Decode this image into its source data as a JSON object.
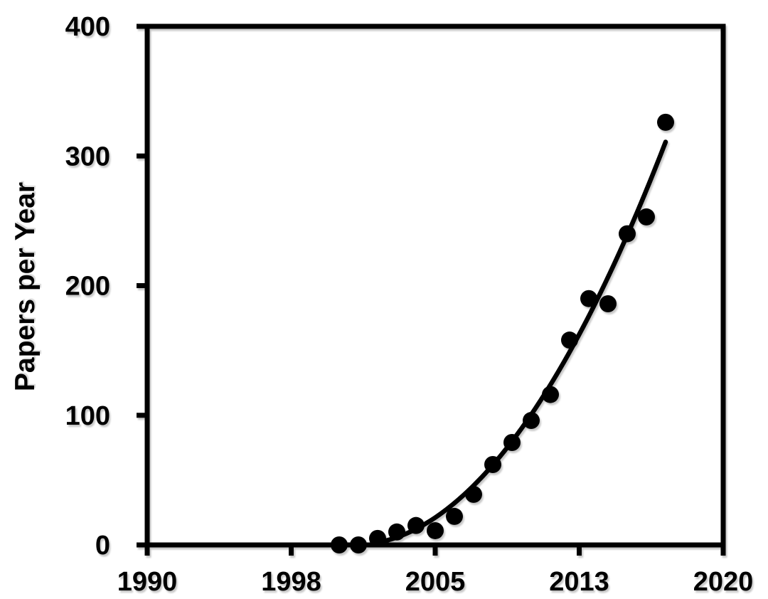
{
  "chart_data": {
    "type": "scatter",
    "title": "",
    "xlabel": "",
    "ylabel": "Papers per Year",
    "xlim": [
      1990,
      2020
    ],
    "ylim": [
      0,
      400
    ],
    "xtick_positions": [
      1990,
      1997.5,
      2005,
      2012.5,
      2020
    ],
    "xtick_labels": [
      "1990",
      "1998",
      "2005",
      "2013",
      "2020"
    ],
    "ytick_positions": [
      0,
      100,
      200,
      300,
      400
    ],
    "ytick_labels": [
      "0",
      "100",
      "200",
      "300",
      "400"
    ],
    "grid": false,
    "legend": "none",
    "series": [
      {
        "name": "Papers per Year",
        "marker": "circle",
        "color": "#000000",
        "x": [
          2000,
          2001,
          2002,
          2003,
          2004,
          2005,
          2006,
          2007,
          2008,
          2009,
          2010,
          2011,
          2012,
          2013,
          2014,
          2015,
          2016,
          2017
        ],
        "y": [
          0,
          0,
          5,
          10,
          15,
          11,
          22,
          39,
          62,
          79,
          96,
          116,
          158,
          190,
          186,
          240,
          253,
          326
        ]
      }
    ],
    "trendline": {
      "model": "quadratic",
      "formula": "y = 1.18 * (x - 2000.77)^2",
      "a": 1.18,
      "x0": 2000.77,
      "x_start": 2002.4,
      "x_end": 2017,
      "color": "#000000"
    },
    "colors": {
      "background": "#ffffff",
      "foreground": "#000000"
    }
  }
}
